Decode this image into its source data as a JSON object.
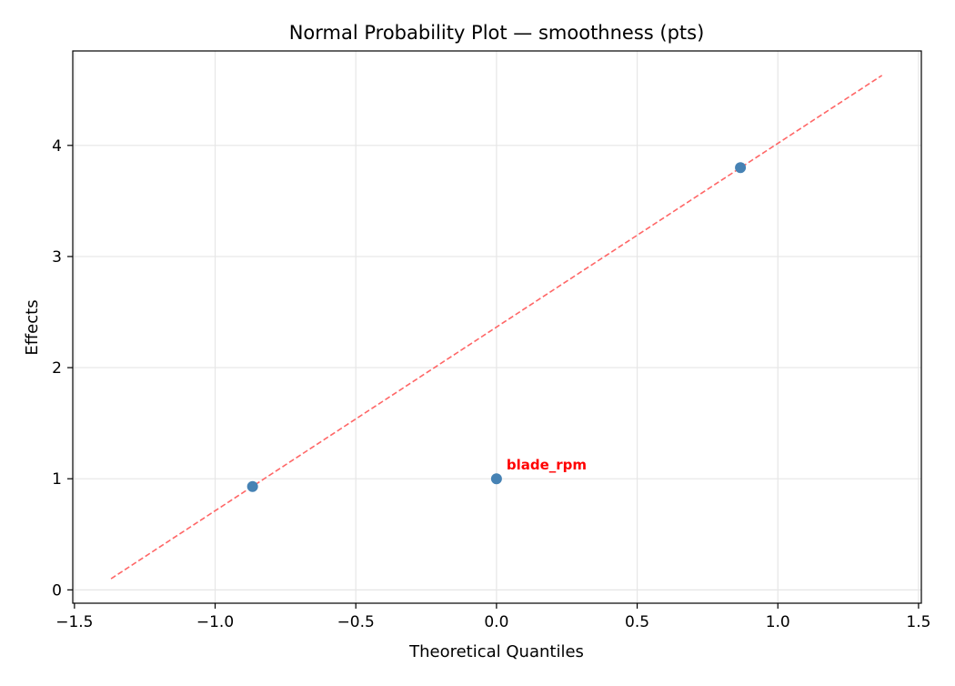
{
  "chart_data": {
    "type": "scatter",
    "title": "Normal Probability Plot — smoothness (pts)",
    "xlabel": "Theoretical Quantiles",
    "ylabel": "Effects",
    "xlim": [
      -1.506,
      1.51
    ],
    "ylim": [
      -0.12,
      4.85
    ],
    "xticks": [
      -1.5,
      -1.0,
      -0.5,
      0.0,
      0.5,
      1.0,
      1.5
    ],
    "xtick_labels": [
      "−1.5",
      "−1.0",
      "−0.5",
      "0.0",
      "0.5",
      "1.0",
      "1.5"
    ],
    "yticks": [
      0,
      1,
      2,
      3,
      4
    ],
    "ytick_labels": [
      "0",
      "1",
      "2",
      "3",
      "4"
    ],
    "grid": true,
    "points": [
      {
        "x": -0.867,
        "y": 0.93,
        "label": ""
      },
      {
        "x": 0.0,
        "y": 1.0,
        "label": "blade_rpm"
      },
      {
        "x": 0.867,
        "y": 3.8,
        "label": ""
      }
    ],
    "reference_line": {
      "x": [
        -1.37,
        1.37
      ],
      "y": [
        0.1,
        4.63
      ],
      "style": "dashed"
    },
    "colors": {
      "points": "#4682b4",
      "reference_line": "#ff6666",
      "annotation": "#ff0000",
      "grid": "#e6e6e6"
    }
  }
}
